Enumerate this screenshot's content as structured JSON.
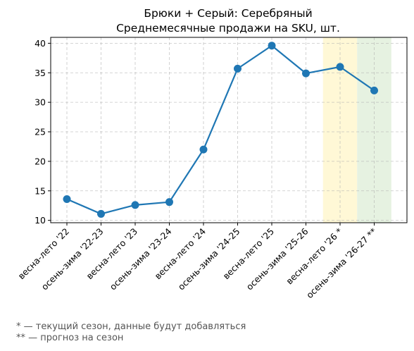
{
  "chart_data": {
    "type": "line",
    "title_line1": "Брюки + Серый: Серебряный",
    "title_line2": "Среднемесячные продажи на SKU, шт.",
    "categories": [
      "весна-лето '22",
      "осень-зима '22-23",
      "весна-лето '23",
      "осень-зима '23-24",
      "весна-лето '24",
      "осень-зима '24-25",
      "весна-лето '25",
      "осень-зима '25-26",
      "весна-лето '26 *",
      "осень-зима '26-27 **"
    ],
    "values": [
      13.6,
      11.1,
      12.6,
      13.1,
      22.0,
      35.7,
      39.6,
      34.9,
      36.0,
      32.0
    ],
    "ylim": [
      9.6,
      41.0
    ],
    "yticks": [
      10,
      15,
      20,
      25,
      30,
      35,
      40
    ],
    "grid": true,
    "line_color": "#1f77b4",
    "current_season_index": 8,
    "forecast_index": 9,
    "current_band_color": "#fff8d6",
    "forecast_band_color": "#e6f2e1"
  },
  "footnotes": {
    "current": "* — текущий сезон, данные будут добавляться",
    "forecast": "** — прогноз на сезон"
  }
}
